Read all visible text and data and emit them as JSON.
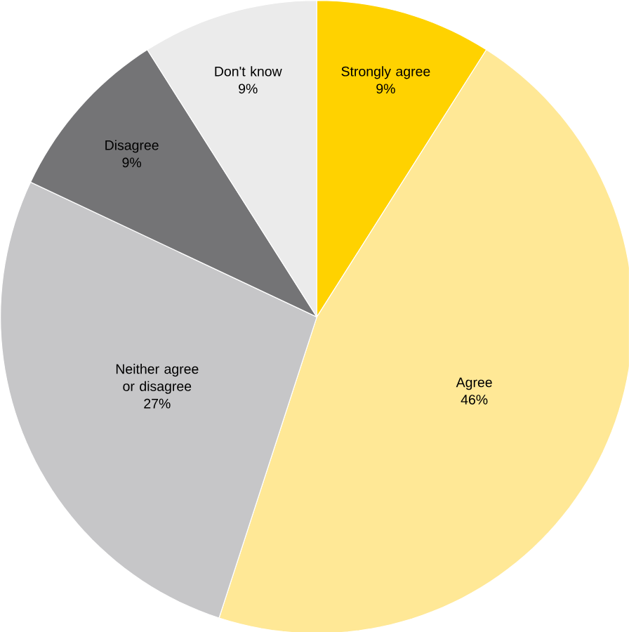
{
  "chart_data": {
    "type": "pie",
    "categories": [
      "Strongly agree",
      "Agree",
      "Neither agree or disagree",
      "Disagree",
      "Don't know"
    ],
    "values": [
      9,
      46,
      27,
      9,
      9
    ],
    "value_labels": [
      "9%",
      "46%",
      "27%",
      "9%",
      "9%"
    ],
    "colors": [
      "#ffd200",
      "#ffe896",
      "#c6c6c8",
      "#747476",
      "#ebebeb"
    ]
  }
}
